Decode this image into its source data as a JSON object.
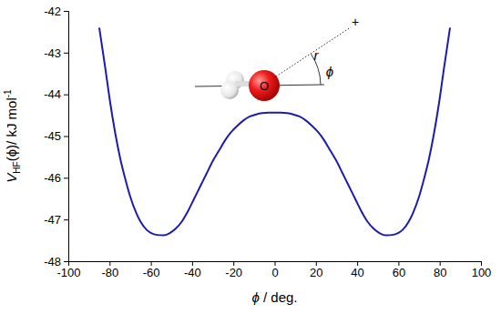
{
  "chart_data": {
    "type": "line",
    "xlabel": [
      "ϕ",
      " / deg."
    ],
    "ylabel": [
      "V",
      "HF",
      "(ϕ)/ kJ mol",
      "-1"
    ],
    "annotations": [
      "r",
      "ϕ",
      "O",
      "+"
    ],
    "color": "#1c1cb0",
    "x": [
      -85,
      -82,
      -80,
      -77,
      -75,
      -72,
      -70,
      -67,
      -65,
      -62,
      -60,
      -57,
      -54,
      -51,
      -48,
      -45,
      -42,
      -39,
      -36,
      -33,
      -30,
      -27,
      -24,
      -21,
      -18,
      -15,
      -12,
      -9,
      -6,
      -3,
      0,
      3,
      6,
      9,
      12,
      15,
      18,
      21,
      24,
      27,
      30,
      33,
      36,
      39,
      42,
      45,
      48,
      51,
      54,
      57,
      60,
      62,
      65,
      67,
      70,
      72,
      75,
      77,
      80,
      82,
      85
    ],
    "values": [
      -42.4,
      -43.4,
      -44.1,
      -45.0,
      -45.5,
      -46.1,
      -46.45,
      -46.85,
      -47.05,
      -47.25,
      -47.32,
      -47.37,
      -47.38,
      -47.33,
      -47.22,
      -47.05,
      -46.8,
      -46.5,
      -46.2,
      -45.9,
      -45.6,
      -45.35,
      -45.1,
      -44.9,
      -44.75,
      -44.62,
      -44.53,
      -44.48,
      -44.45,
      -44.44,
      -44.44,
      -44.44,
      -44.45,
      -44.48,
      -44.53,
      -44.62,
      -44.75,
      -44.9,
      -45.1,
      -45.35,
      -45.6,
      -45.9,
      -46.2,
      -46.5,
      -46.8,
      -47.05,
      -47.22,
      -47.33,
      -47.38,
      -47.37,
      -47.32,
      -47.25,
      -47.05,
      -46.85,
      -46.45,
      -46.1,
      -45.5,
      -45.0,
      -44.1,
      -43.4,
      -42.4
    ],
    "xlim": [
      -100,
      100
    ],
    "xticks": [
      -100,
      -80,
      -60,
      -40,
      -20,
      0,
      20,
      40,
      60,
      80,
      100
    ],
    "ylim": [
      -48,
      -42
    ],
    "yticks": [
      -48,
      -47,
      -46,
      -45,
      -44,
      -43,
      -42
    ],
    "grid": false
  }
}
